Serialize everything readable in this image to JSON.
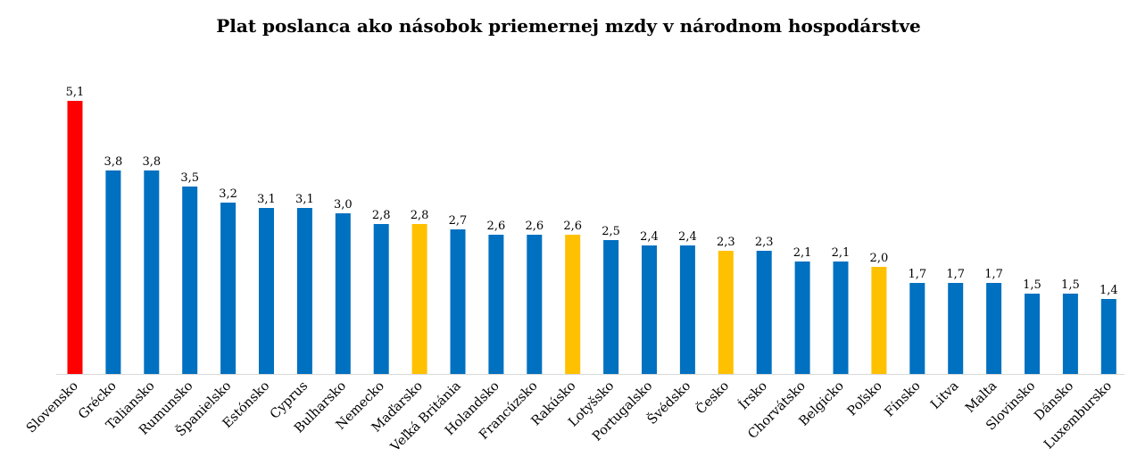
{
  "chart_data": {
    "type": "bar",
    "title": "Plat poslanca ako násobok priemernej mzdy v národnom hospodárstve",
    "xlabel": "",
    "ylabel": "",
    "ylim": [
      0,
      5.1
    ],
    "grid": false,
    "legend": "none",
    "categories": [
      "Slovensko",
      "Grécko",
      "Taliansko",
      "Rumunsko",
      "Španielsko",
      "Estónsko",
      "Cyprus",
      "Bulharsko",
      "Nemecko",
      "Maďarsko",
      "Veľká Británia",
      "Holandsko",
      "Francúzsko",
      "Rakúsko",
      "Lotyšsko",
      "Portugalsko",
      "Švédsko",
      "Česko",
      "Írsko",
      "Chorvátsko",
      "Belgicko",
      "Poľsko",
      "Fínsko",
      "Litva",
      "Malta",
      "Slovinsko",
      "Dánsko",
      "Luxembursko"
    ],
    "values": [
      5.1,
      3.8,
      3.8,
      3.5,
      3.2,
      3.1,
      3.1,
      3.0,
      2.8,
      2.8,
      2.7,
      2.6,
      2.6,
      2.6,
      2.5,
      2.4,
      2.4,
      2.3,
      2.3,
      2.1,
      2.1,
      2.0,
      1.7,
      1.7,
      1.7,
      1.5,
      1.5,
      1.4
    ],
    "value_labels": [
      "5,1",
      "3,8",
      "3,8",
      "3,5",
      "3,2",
      "3,1",
      "3,1",
      "3,0",
      "2,8",
      "2,8",
      "2,7",
      "2,6",
      "2,6",
      "2,6",
      "2,5",
      "2,4",
      "2,4",
      "2,3",
      "2,3",
      "2,1",
      "2,1",
      "2,0",
      "1,7",
      "1,7",
      "1,7",
      "1,5",
      "1,5",
      "1,4"
    ],
    "bar_colors": [
      "#ff0000",
      "#0070c0",
      "#0070c0",
      "#0070c0",
      "#0070c0",
      "#0070c0",
      "#0070c0",
      "#0070c0",
      "#0070c0",
      "#ffc000",
      "#0070c0",
      "#0070c0",
      "#0070c0",
      "#ffc000",
      "#0070c0",
      "#0070c0",
      "#0070c0",
      "#ffc000",
      "#0070c0",
      "#0070c0",
      "#0070c0",
      "#ffc000",
      "#0070c0",
      "#0070c0",
      "#0070c0",
      "#0070c0",
      "#0070c0",
      "#0070c0"
    ],
    "axis_color": "#d9d9d9"
  }
}
